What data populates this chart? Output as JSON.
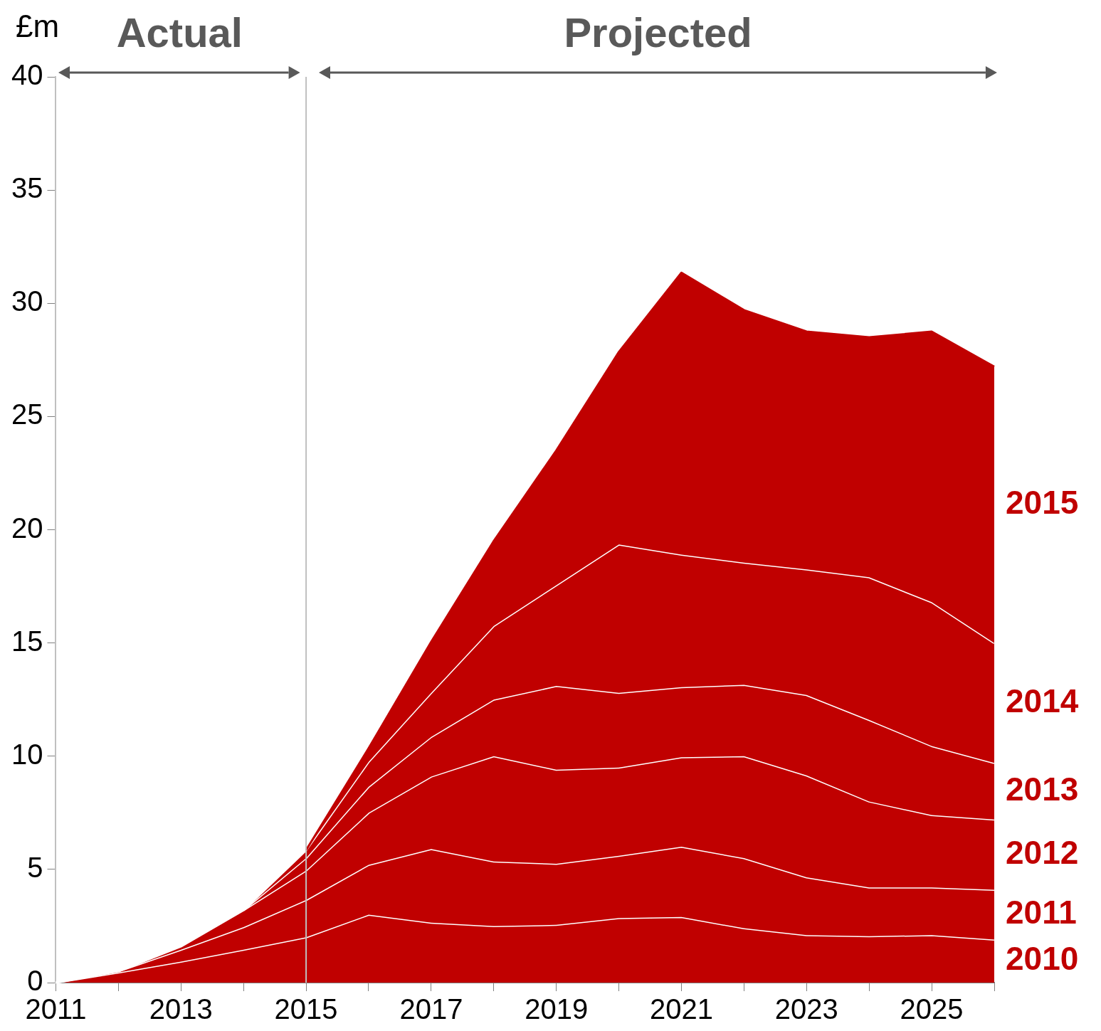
{
  "chart_data": {
    "type": "area",
    "stacked": true,
    "ylabel": "£m",
    "x": [
      2011,
      2012,
      2013,
      2014,
      2015,
      2016,
      2017,
      2018,
      2019,
      2020,
      2021,
      2022,
      2023,
      2024,
      2025,
      2026
    ],
    "xlim": [
      2011,
      2026
    ],
    "xticks": [
      2011,
      {
        "value": 2012,
        "label": null
      },
      2013,
      {
        "value": 2014,
        "label": null
      },
      2015,
      {
        "value": 2016,
        "label": null
      },
      2017,
      {
        "value": 2018,
        "label": null
      },
      2019,
      {
        "value": 2020,
        "label": null
      },
      2021,
      {
        "value": 2022,
        "label": null
      },
      2023,
      {
        "value": 2024,
        "label": null
      },
      2025,
      {
        "value": 2026,
        "label": null
      }
    ],
    "ylim": [
      0,
      40
    ],
    "yticks": [
      0,
      5,
      10,
      15,
      20,
      25,
      30,
      35,
      40
    ],
    "grid": false,
    "legend": false,
    "series": [
      {
        "name": "2010",
        "color": "#c00000",
        "values": [
          0,
          0.45,
          0.93,
          1.45,
          2.0,
          3.0,
          2.65,
          2.5,
          2.55,
          2.85,
          2.9,
          2.4,
          2.1,
          2.05,
          2.1,
          1.9
        ]
      },
      {
        "name": "2011",
        "color": "#c00000",
        "values": [
          0,
          0.05,
          0.52,
          1.0,
          1.65,
          2.2,
          3.25,
          2.85,
          2.7,
          2.75,
          3.1,
          3.1,
          2.55,
          2.15,
          2.1,
          2.2
        ]
      },
      {
        "name": "2012",
        "color": "#c00000",
        "values": [
          null,
          0,
          0.15,
          0.75,
          1.3,
          2.3,
          3.2,
          4.65,
          4.15,
          3.9,
          3.95,
          4.5,
          4.5,
          3.8,
          3.2,
          3.1
        ]
      },
      {
        "name": "2013",
        "color": "#c00000",
        "values": [
          null,
          null,
          null,
          0,
          0.55,
          1.15,
          1.75,
          2.5,
          3.7,
          3.3,
          3.1,
          3.15,
          3.55,
          3.6,
          3.05,
          2.5
        ]
      },
      {
        "name": "2014",
        "color": "#c00000",
        "values": [
          null,
          null,
          null,
          0,
          0.35,
          1.1,
          1.95,
          3.25,
          4.45,
          6.55,
          5.85,
          5.4,
          5.55,
          6.3,
          6.35,
          5.3
        ]
      },
      {
        "name": "2015",
        "color": "#c00000",
        "values": [
          null,
          null,
          null,
          null,
          0,
          0.6,
          2.25,
          3.75,
          5.95,
          8.5,
          12.45,
          11.15,
          10.5,
          10.6,
          11.95,
          12.2
        ]
      }
    ],
    "ref_lines": [
      {
        "axis": "x",
        "value": 2015,
        "color": "#bfbfbf"
      }
    ],
    "annotations": [
      "Actual",
      "Projected"
    ]
  }
}
